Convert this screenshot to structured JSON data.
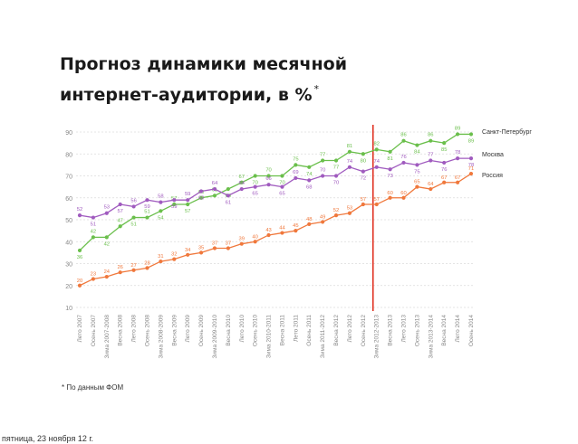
{
  "title": "Прогноз динамики месячной интернет-аудитории, в %",
  "title_mark": "*",
  "footnote": "* По данным ФОМ",
  "footer": "пятница, 23 ноября 12 г.",
  "colors": {
    "spb": "#6abf4b",
    "moscow": "#a05bbf",
    "russia": "#f0783c",
    "forecast_line": "#e03020",
    "grid": "#dcdcdc",
    "axis_text": "#888888"
  },
  "chart_data": {
    "type": "line",
    "ylim": [
      10,
      90
    ],
    "yticks": [
      10,
      20,
      30,
      40,
      50,
      60,
      70,
      80,
      90
    ],
    "grid": true,
    "legend": "right",
    "forecast_divider_after": "Зима 2012-2013",
    "categories": [
      "Лето 2007",
      "Осень 2007",
      "Зима 2007-2008",
      "Весна 2008",
      "Лето 2008",
      "Осень 2008",
      "Зима 2008-2009",
      "Весна 2009",
      "Лето 2009",
      "Осень 2009",
      "Зима 2009-2010",
      "Весна 2010",
      "Лето 2010",
      "Осень 2010",
      "Зима 2010-2011",
      "Весна 2011",
      "Лето 2011",
      "Осень 2011",
      "Зима 2011-2012",
      "Весна 2012",
      "Лето 2012",
      "Осень 2012",
      "Зима 2012-2013",
      "Весна 2013",
      "Лето 2013",
      "Осень 2013",
      "Зима 2013-2014",
      "Весна 2014",
      "Лето 2014",
      "Осень 2014"
    ],
    "series": [
      {
        "name": "Санкт-Петербург",
        "key": "spb",
        "values": [
          36,
          42,
          42,
          47,
          51,
          51,
          54,
          57,
          57,
          60,
          61,
          64,
          67,
          70,
          70,
          70,
          75,
          74,
          77,
          77,
          81,
          80,
          82,
          81,
          86,
          84,
          86,
          85,
          89,
          89
        ]
      },
      {
        "name": "Москва",
        "key": "moscow",
        "values": [
          52,
          51,
          53,
          57,
          56,
          59,
          58,
          59,
          59,
          63,
          64,
          61,
          64,
          65,
          66,
          65,
          69,
          68,
          70,
          70,
          74,
          72,
          74,
          73,
          76,
          75,
          77,
          76,
          78,
          78
        ]
      },
      {
        "name": "Россия",
        "key": "russia",
        "values": [
          20,
          23,
          24,
          26,
          27,
          28,
          31,
          32,
          34,
          35,
          37,
          37,
          39,
          40,
          43,
          44,
          45,
          48,
          49,
          52,
          53,
          57,
          57,
          60,
          60,
          65,
          64,
          67,
          67,
          71
        ]
      }
    ]
  }
}
